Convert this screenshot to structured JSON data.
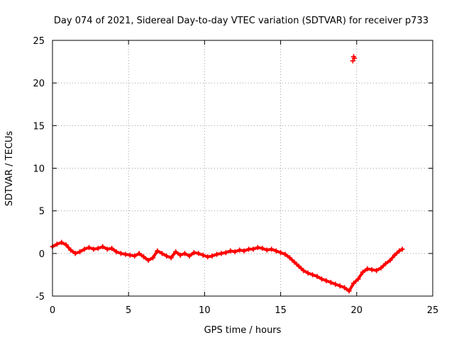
{
  "chart_data": {
    "type": "scatter",
    "title": "Day 074 of 2021, Sidereal Day-to-day VTEC variation (SDTVAR) for receiver p733",
    "xlabel": "GPS time / hours",
    "ylabel": "SDTVAR / TECUs",
    "xlim": [
      0,
      25
    ],
    "ylim": [
      -5,
      25
    ],
    "xticks": [
      0,
      5,
      10,
      15,
      20,
      25
    ],
    "yticks": [
      -5,
      0,
      5,
      10,
      15,
      20,
      25
    ],
    "xtick_labels": [
      "0",
      "5",
      "10",
      "15",
      "20",
      "25"
    ],
    "ytick_labels": [
      "-5",
      "0",
      "5",
      "10",
      "15",
      "20",
      "25"
    ],
    "grid": true,
    "marker": "plus",
    "series_color": "#ff0000",
    "series": [
      {
        "name": "SDTVAR",
        "x": [
          0.0,
          0.3,
          0.6,
          0.9,
          1.2,
          1.5,
          1.8,
          2.1,
          2.4,
          2.7,
          3.0,
          3.3,
          3.6,
          3.9,
          4.2,
          4.5,
          4.8,
          5.1,
          5.4,
          5.7,
          6.0,
          6.3,
          6.6,
          6.9,
          7.2,
          7.5,
          7.8,
          8.1,
          8.4,
          8.7,
          9.0,
          9.3,
          9.6,
          9.9,
          10.2,
          10.5,
          10.8,
          11.1,
          11.4,
          11.7,
          12.0,
          12.3,
          12.6,
          12.9,
          13.2,
          13.5,
          13.8,
          14.1,
          14.4,
          14.7,
          15.0,
          15.3,
          15.6,
          15.9,
          16.2,
          16.5,
          16.8,
          17.1,
          17.4,
          17.7,
          18.0,
          18.3,
          18.6,
          18.9,
          19.2,
          19.5,
          19.8,
          20.1,
          20.4,
          20.7,
          21.0,
          21.3,
          21.6,
          21.9,
          22.2,
          22.5,
          22.8,
          23.0,
          19.75,
          19.8,
          19.85
        ],
        "y": [
          0.8,
          1.1,
          1.3,
          1.0,
          0.4,
          0.0,
          0.2,
          0.5,
          0.7,
          0.5,
          0.6,
          0.8,
          0.5,
          0.6,
          0.2,
          0.0,
          -0.1,
          -0.2,
          -0.3,
          0.0,
          -0.4,
          -0.8,
          -0.5,
          0.3,
          0.0,
          -0.3,
          -0.5,
          0.2,
          -0.2,
          0.0,
          -0.3,
          0.1,
          0.0,
          -0.2,
          -0.4,
          -0.3,
          -0.1,
          0.0,
          0.1,
          0.3,
          0.2,
          0.4,
          0.3,
          0.5,
          0.5,
          0.7,
          0.6,
          0.4,
          0.5,
          0.3,
          0.1,
          -0.1,
          -0.5,
          -1.0,
          -1.5,
          -2.0,
          -2.3,
          -2.5,
          -2.7,
          -3.0,
          -3.2,
          -3.4,
          -3.6,
          -3.8,
          -4.0,
          -4.4,
          -3.5,
          -3.0,
          -2.2,
          -1.8,
          -1.9,
          -2.0,
          -1.7,
          -1.2,
          -0.8,
          -0.2,
          0.3,
          0.5,
          22.6,
          23.1,
          22.9
        ]
      }
    ]
  }
}
